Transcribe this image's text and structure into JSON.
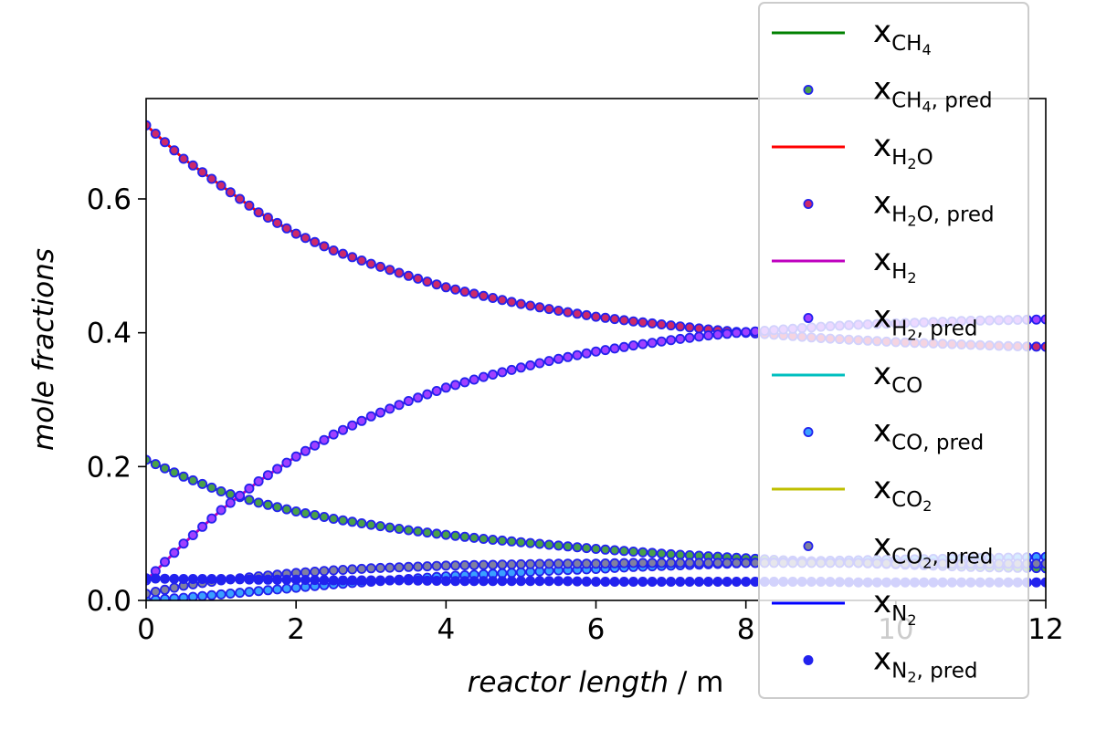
{
  "chart_data": {
    "type": "line",
    "xlabel_italic": "reactor length",
    "xlabel_unit": " / m",
    "ylabel": "mole fractions",
    "xlim": [
      0,
      12
    ],
    "ylim": [
      0,
      0.75
    ],
    "xticks": [
      0,
      2,
      4,
      6,
      8,
      10,
      12
    ],
    "xtick_labels": [
      "0",
      "2",
      "4",
      "6",
      "8",
      "10",
      "12"
    ],
    "yticks": [
      0.0,
      0.2,
      0.4,
      0.6
    ],
    "ytick_labels": [
      "0.0",
      "0.2",
      "0.4",
      "0.6"
    ],
    "grid": false,
    "legend_position": "top-right",
    "x": [
      0,
      0.5,
      1,
      1.5,
      2,
      2.5,
      3,
      3.5,
      4,
      4.5,
      5,
      5.5,
      6,
      6.5,
      7,
      7.5,
      8,
      8.5,
      9,
      9.5,
      10,
      10.5,
      11,
      11.5,
      12
    ],
    "marker_color": "#2222ee",
    "series": [
      {
        "base": "x",
        "sub": "CH",
        "sub2": "4",
        "color": "#008000",
        "pred_fill": "#4aa04a",
        "values": [
          0.21,
          0.185,
          0.163,
          0.146,
          0.133,
          0.122,
          0.113,
          0.105,
          0.098,
          0.092,
          0.087,
          0.082,
          0.077,
          0.073,
          0.069,
          0.066,
          0.063,
          0.06,
          0.058,
          0.056,
          0.054,
          0.052,
          0.05,
          0.049,
          0.048
        ]
      },
      {
        "base": "x",
        "sub": "H",
        "sub2": "2",
        "sub3": "O",
        "color": "#ff0000",
        "pred_fill": "#cc2a6a",
        "values": [
          0.71,
          0.66,
          0.62,
          0.58,
          0.548,
          0.523,
          0.503,
          0.485,
          0.468,
          0.455,
          0.443,
          0.433,
          0.424,
          0.417,
          0.411,
          0.405,
          0.4,
          0.396,
          0.392,
          0.389,
          0.386,
          0.384,
          0.382,
          0.38,
          0.379
        ]
      },
      {
        "base": "x",
        "sub": "H",
        "sub2": "2",
        "color": "#bf00bf",
        "pred_fill": "#a040ff",
        "values": [
          0.03,
          0.085,
          0.135,
          0.178,
          0.215,
          0.248,
          0.275,
          0.298,
          0.318,
          0.334,
          0.348,
          0.361,
          0.372,
          0.381,
          0.389,
          0.396,
          0.401,
          0.405,
          0.409,
          0.412,
          0.414,
          0.416,
          0.418,
          0.419,
          0.42
        ]
      },
      {
        "base": "x",
        "sub": "CO",
        "color": "#00bfbf",
        "pred_fill": "#3aa0ff",
        "values": [
          0.0,
          0.004,
          0.009,
          0.014,
          0.019,
          0.024,
          0.028,
          0.032,
          0.036,
          0.039,
          0.042,
          0.045,
          0.047,
          0.05,
          0.052,
          0.054,
          0.056,
          0.057,
          0.059,
          0.06,
          0.061,
          0.062,
          0.063,
          0.064,
          0.065
        ]
      },
      {
        "base": "x",
        "sub": "CO",
        "sub2": "2",
        "color": "#bfbf00",
        "pred_fill": "#8080a0",
        "values": [
          0.01,
          0.022,
          0.03,
          0.036,
          0.041,
          0.045,
          0.048,
          0.05,
          0.052,
          0.053,
          0.054,
          0.055,
          0.055,
          0.056,
          0.056,
          0.056,
          0.056,
          0.056,
          0.056,
          0.056,
          0.055,
          0.055,
          0.055,
          0.055,
          0.055
        ]
      },
      {
        "base": "x",
        "sub": "N",
        "sub2": "2",
        "color": "#0000ff",
        "pred_fill": "#2222ee",
        "values": [
          0.033,
          0.032,
          0.032,
          0.031,
          0.031,
          0.03,
          0.03,
          0.03,
          0.029,
          0.029,
          0.029,
          0.029,
          0.028,
          0.028,
          0.028,
          0.028,
          0.028,
          0.028,
          0.028,
          0.027,
          0.027,
          0.027,
          0.027,
          0.027,
          0.027
        ]
      }
    ],
    "pred_suffix": "pred"
  }
}
